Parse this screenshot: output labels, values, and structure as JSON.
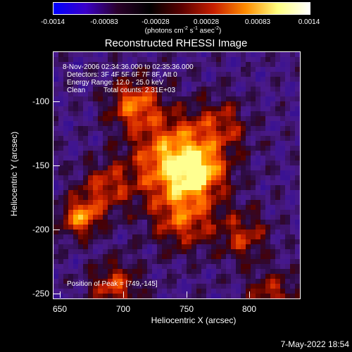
{
  "colorbar": {
    "ticks": [
      "-0.0014",
      "-0.00083",
      "-0.00028",
      "0.00028",
      "0.00083",
      "0.0014"
    ],
    "unit_prefix": "(photons cm",
    "unit_exp1": "-2",
    "unit_mid1": " s",
    "unit_exp2": "-1",
    "unit_mid2": " asec",
    "unit_exp3": "-2",
    "unit_suffix": ")",
    "colormap": [
      "#0000ff",
      "#3a00c8",
      "#2a002a",
      "#000000",
      "#5a0000",
      "#c81e00",
      "#ff8c00",
      "#ffff80",
      "#ffffff"
    ]
  },
  "title": "Reconstructed RHESSI Image",
  "info": {
    "time_range": "8-Nov-2006 02:34:36.000 to 02:35:36.000",
    "detectors": "Detectors: 3F 4F 5F 6F 7F 8F, Att 0",
    "energy": "Energy Range: 12.0 - 25.0 keV",
    "method": "Clean",
    "counts": "Total counts: 2.31E+03",
    "peak": "Position of Peak = [749,-145]"
  },
  "axes": {
    "xlabel": "Heliocentric X (arcsec)",
    "ylabel": "Heliocentric Y (arcsec)",
    "xticks": [
      "650",
      "700",
      "750",
      "800"
    ],
    "yticks": [
      "-100",
      "-150",
      "-200",
      "-250"
    ]
  },
  "timestamp": "7-May-2022 18:54"
}
